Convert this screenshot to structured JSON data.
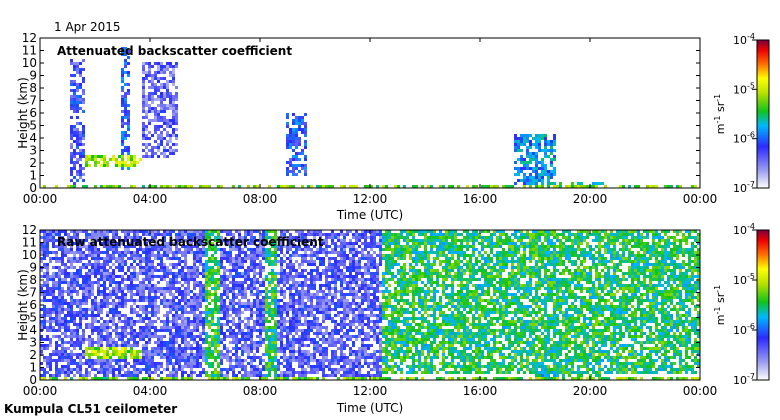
{
  "date": "1 Apr 2015",
  "footer": "Kumpula CL51 ceilometer",
  "chart_data": [
    {
      "type": "heatmap",
      "title": "Attenuated backscatter coefficient",
      "xlabel": "Time (UTC)",
      "ylabel": "Height (km)",
      "x_ticks": [
        "00:00",
        "04:00",
        "08:00",
        "12:00",
        "16:00",
        "20:00",
        "00:00"
      ],
      "y_ticks": [
        "0",
        "1",
        "2",
        "3",
        "4",
        "5",
        "6",
        "7",
        "8",
        "9",
        "10",
        "11",
        "12"
      ],
      "xlim_hours": [
        0,
        24
      ],
      "ylim_km": [
        0,
        12
      ],
      "colorbar": {
        "scale": "log",
        "range": [
          1e-07,
          0.0001
        ],
        "ticks": [
          {
            "base": "10",
            "exp": "-4"
          },
          {
            "base": "10",
            "exp": "-5"
          },
          {
            "base": "10",
            "exp": "-6"
          },
          {
            "base": "10",
            "exp": "-7"
          }
        ],
        "unit_label": "m-1 sr-1"
      },
      "cloud_regions": [
        {
          "t0": 1.0,
          "t1": 1.55,
          "h0": 0.3,
          "h1": 10.5,
          "level": 0.25
        },
        {
          "t0": 1.55,
          "t1": 3.6,
          "h0": 1.8,
          "h1": 2.7,
          "level": 0.62
        },
        {
          "t0": 2.9,
          "t1": 3.2,
          "h0": 1.5,
          "h1": 11.5,
          "level": 0.3
        },
        {
          "t0": 3.6,
          "t1": 5.0,
          "h0": 2.5,
          "h1": 10.3,
          "level": 0.2
        },
        {
          "t0": 8.9,
          "t1": 9.7,
          "h0": 1.0,
          "h1": 6.2,
          "level": 0.3
        },
        {
          "t0": 17.2,
          "t1": 18.7,
          "h0": 0.3,
          "h1": 4.5,
          "level": 0.38
        },
        {
          "t0": 18.0,
          "t1": 20.5,
          "h0": 0.1,
          "h1": 0.7,
          "level": 0.45
        }
      ]
    },
    {
      "type": "heatmap",
      "title": "Raw attenuated backscatter coefficient",
      "xlabel": "Time (UTC)",
      "ylabel": "Height (km)",
      "x_ticks": [
        "00:00",
        "04:00",
        "08:00",
        "12:00",
        "16:00",
        "20:00",
        "00:00"
      ],
      "y_ticks": [
        "0",
        "1",
        "2",
        "3",
        "4",
        "5",
        "6",
        "7",
        "8",
        "9",
        "10",
        "11",
        "12"
      ],
      "xlim_hours": [
        0,
        24
      ],
      "ylim_km": [
        0,
        12
      ],
      "colorbar": {
        "scale": "log",
        "range": [
          1e-07,
          0.0001
        ],
        "ticks": [
          {
            "base": "10",
            "exp": "-4"
          },
          {
            "base": "10",
            "exp": "-5"
          },
          {
            "base": "10",
            "exp": "-6"
          },
          {
            "base": "10",
            "exp": "-7"
          }
        ],
        "unit_label": "m-1 sr-1"
      },
      "noise_regions": [
        {
          "t0": 0.0,
          "t1": 12.4,
          "h0": 0.0,
          "h1": 12.0,
          "level": 0.22
        },
        {
          "t0": 12.4,
          "t1": 24.0,
          "h0": 0.5,
          "h1": 12.0,
          "level": 0.5
        },
        {
          "t0": 6.0,
          "t1": 6.5,
          "h0": 0.0,
          "h1": 12.0,
          "level": 0.52
        },
        {
          "t0": 8.1,
          "t1": 8.6,
          "h0": 0.0,
          "h1": 12.0,
          "level": 0.5
        }
      ],
      "cloud_regions": [
        {
          "t0": 1.0,
          "t1": 1.55,
          "h0": 0.3,
          "h1": 12.0,
          "level": 0.22
        },
        {
          "t0": 1.55,
          "t1": 3.6,
          "h0": 1.8,
          "h1": 2.7,
          "level": 0.62
        },
        {
          "t0": 17.2,
          "t1": 18.6,
          "h0": 2.5,
          "h1": 4.5,
          "level": 0.45
        },
        {
          "t0": 18.0,
          "t1": 20.5,
          "h0": 0.1,
          "h1": 0.7,
          "level": 0.45
        }
      ]
    }
  ]
}
